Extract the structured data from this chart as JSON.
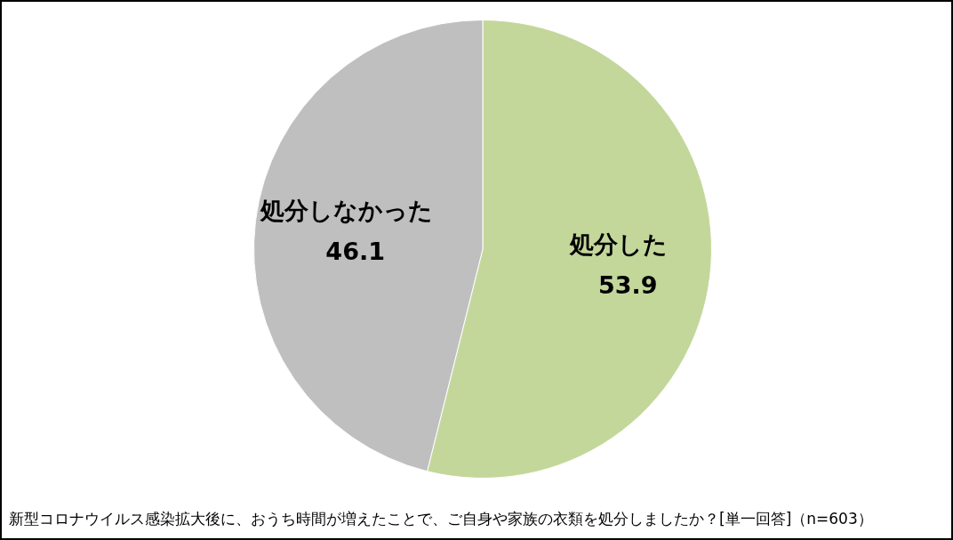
{
  "chart_data": {
    "type": "pie",
    "categories": [
      "処分した",
      "処分しなかった"
    ],
    "values": [
      53.9,
      46.1
    ],
    "colors": [
      "#c4d79b",
      "#bfbfbf"
    ],
    "data_labels": true,
    "legend": false,
    "annotations": [
      "新型コロナウイルス感染拡大後に、おうち時間が増えたことで、ご自身や家族の衣類を処分しましたか？[単一回答]（n=603）"
    ]
  }
}
